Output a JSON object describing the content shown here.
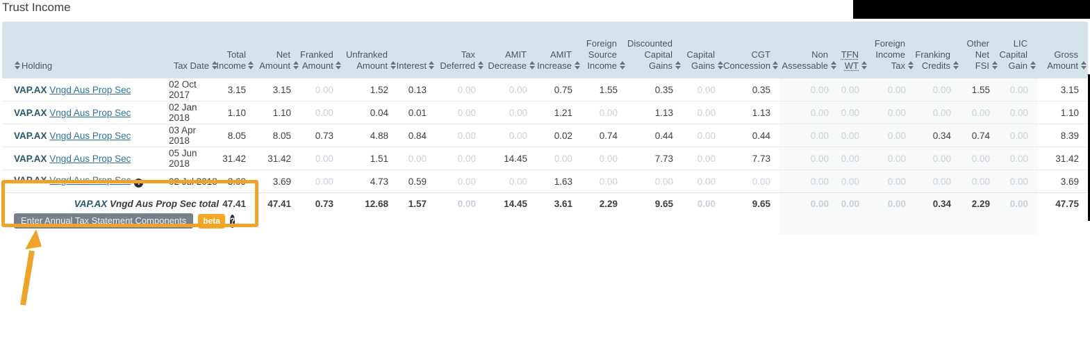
{
  "title": "Trust Income",
  "colors": {
    "header_bg": "#d5e4ea",
    "header_text": "#47585f",
    "link": "#2f7396",
    "ticker": "#27566d",
    "muted_zero": "#c6d0da",
    "annotation_orange": "#f0a32a",
    "badge_orange": "#f5a623",
    "button_gray": "#76818c",
    "redaction_black": "#000000"
  },
  "icons": {
    "sort": "sort-up-down-triangles",
    "info": "i",
    "help": "?"
  },
  "table": {
    "columns": [
      {
        "key": "holding",
        "label": "Holding",
        "icon_position": "before",
        "align": "left"
      },
      {
        "key": "tax-date",
        "label": "Tax Date",
        "align": "left"
      },
      {
        "key": "total-income",
        "label": "Total\nIncome"
      },
      {
        "key": "net-amount",
        "label": "Net\nAmount"
      },
      {
        "key": "franked-amount",
        "label": "Franked\nAmount"
      },
      {
        "key": "unfranked-amount",
        "label": "Unfranked\nAmount"
      },
      {
        "key": "interest",
        "label": "Interest"
      },
      {
        "key": "tax-deferred",
        "label": "Tax\nDeferred"
      },
      {
        "key": "amit-decrease",
        "label": "AMIT\nDecrease"
      },
      {
        "key": "amit-increase",
        "label": "AMIT\nIncrease"
      },
      {
        "key": "foreign-source-income",
        "label": "Foreign\nSource\nIncome"
      },
      {
        "key": "discounted-capital-gains",
        "label": "Discounted\nCapital\nGains"
      },
      {
        "key": "capital-gains",
        "label": "Capital\nGains"
      },
      {
        "key": "cgt-concession",
        "label": "CGT\nConcession"
      },
      {
        "key": "non-assessable",
        "label": "Non\nAssessable"
      },
      {
        "key": "tfn-wt",
        "label": "TFN\nWT",
        "underline": true
      },
      {
        "key": "foreign-income-tax",
        "label": "Foreign\nIncome\nTax"
      },
      {
        "key": "franking-credits",
        "label": "Franking\nCredits"
      },
      {
        "key": "other-net-fsi",
        "label": "Other\nNet\nFSI"
      },
      {
        "key": "lic-capital-gain",
        "label": "LIC\nCapital\nGain"
      },
      {
        "key": "gross-amount",
        "label": "Gross\nAmount"
      }
    ],
    "rows": [
      {
        "ticker": "VAP.AX",
        "name": "Vngd Aus Prop Sec",
        "info_icon": false,
        "tax_date": "02 Oct 2017",
        "values": [
          "3.15",
          "3.15",
          "0.00",
          "1.52",
          "0.13",
          "0.00",
          "0.00",
          "0.75",
          "1.55",
          "0.35",
          "0.00",
          "0.35",
          "0.00",
          "0.00",
          "0.00",
          "0.00",
          "1.55",
          "0.00",
          "3.15"
        ]
      },
      {
        "ticker": "VAP.AX",
        "name": "Vngd Aus Prop Sec",
        "info_icon": false,
        "tax_date": "02 Jan 2018",
        "values": [
          "1.10",
          "1.10",
          "0.00",
          "0.04",
          "0.01",
          "0.00",
          "0.00",
          "1.21",
          "0.00",
          "1.13",
          "0.00",
          "1.13",
          "0.00",
          "0.00",
          "0.00",
          "0.00",
          "0.00",
          "0.00",
          "1.10"
        ]
      },
      {
        "ticker": "VAP.AX",
        "name": "Vngd Aus Prop Sec",
        "info_icon": false,
        "tax_date": "03 Apr 2018",
        "values": [
          "8.05",
          "8.05",
          "0.73",
          "4.88",
          "0.84",
          "0.00",
          "0.00",
          "0.02",
          "0.74",
          "0.44",
          "0.00",
          "0.44",
          "0.00",
          "0.00",
          "0.00",
          "0.34",
          "0.74",
          "0.00",
          "8.39"
        ]
      },
      {
        "ticker": "VAP.AX",
        "name": "Vngd Aus Prop Sec",
        "info_icon": false,
        "tax_date": "05 Jun 2018",
        "values": [
          "31.42",
          "31.42",
          "0.00",
          "1.51",
          "0.00",
          "0.00",
          "14.45",
          "0.00",
          "0.00",
          "7.73",
          "0.00",
          "7.73",
          "0.00",
          "0.00",
          "0.00",
          "0.00",
          "0.00",
          "0.00",
          "31.42"
        ]
      },
      {
        "ticker": "VAP.AX",
        "name": "Vngd Aus Prop Sec",
        "info_icon": true,
        "tax_date": "02 Jul 2018",
        "values": [
          "3.69",
          "3.69",
          "0.00",
          "4.73",
          "0.59",
          "0.00",
          "0.00",
          "1.63",
          "0.00",
          "0.00",
          "0.00",
          "0.00",
          "0.00",
          "0.00",
          "0.00",
          "0.00",
          "0.00",
          "0.00",
          "3.69"
        ]
      }
    ],
    "total_row": {
      "ticker": "VAP.AX",
      "label": "Vngd Aus Prop Sec total",
      "values": [
        "47.41",
        "47.41",
        "0.73",
        "12.68",
        "1.57",
        "0.00",
        "14.45",
        "3.61",
        "2.29",
        "9.65",
        "0.00",
        "9.65",
        "0.00",
        "0.00",
        "0.00",
        "0.34",
        "2.29",
        "0.00",
        "47.75"
      ]
    }
  },
  "annotation": {
    "button_label": "Enter Annual Tax Statement Components",
    "badge_label": "beta",
    "help_glyph": "?",
    "info_glyph": "i"
  }
}
